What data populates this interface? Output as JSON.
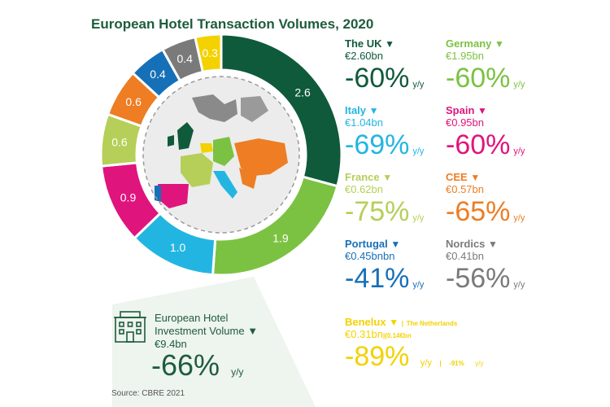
{
  "title": "European Hotel Transaction Volumes, 2020",
  "chart_data": {
    "type": "pie",
    "title": "European Hotel Transaction Volumes, 2020",
    "variant": "donut",
    "unit": "€bn",
    "slices": [
      {
        "label": "2.6",
        "value": 2.6,
        "color": "#0f5a3b",
        "country": "The UK"
      },
      {
        "label": "1.9",
        "value": 1.95,
        "color": "#7cc242",
        "country": "Germany"
      },
      {
        "label": "1.0",
        "value": 1.04,
        "color": "#23b5e2",
        "country": "Italy"
      },
      {
        "label": "0.9",
        "value": 0.95,
        "color": "#e0147d",
        "country": "Spain"
      },
      {
        "label": "0.6",
        "value": 0.62,
        "color": "#b5cf58",
        "country": "France"
      },
      {
        "label": "0.6",
        "value": 0.57,
        "color": "#ee7d23",
        "country": "CEE"
      },
      {
        "label": "0.4",
        "value": 0.45,
        "color": "#1670b8",
        "country": "Portugal"
      },
      {
        "label": "0.4",
        "value": 0.41,
        "color": "#7a7a7a",
        "country": "Nordics"
      },
      {
        "label": "0.3",
        "value": 0.31,
        "color": "#f3d200",
        "country": "Benelux"
      }
    ]
  },
  "countries": [
    {
      "name": "The UK",
      "value": "€2.60bn",
      "change": "-60%",
      "suffix": "y/y",
      "color": "#0f5a3b",
      "val_color": "#0f5a3b"
    },
    {
      "name": "Germany",
      "value": "€1.95bn",
      "change": "-60%",
      "suffix": "y/y",
      "color": "#7cc242",
      "val_color": "#7cc242"
    },
    {
      "name": "Italy",
      "value": "€1.04bn",
      "change": "-69%",
      "suffix": "y/y",
      "color": "#23b5e2",
      "val_color": "#23b5e2"
    },
    {
      "name": "Spain",
      "value": "€0.95bn",
      "change": "-60%",
      "suffix": "y/y",
      "color": "#e0147d",
      "val_color": "#e0147d"
    },
    {
      "name": "France",
      "value": "€0.62bn",
      "change": "-75%",
      "suffix": "y/y",
      "color": "#b5cf58",
      "val_color": "#b5cf58"
    },
    {
      "name": "CEE",
      "value": "€0.57bn",
      "change": "-65%",
      "suffix": "y/y",
      "color": "#ee7d23",
      "val_color": "#ee7d23"
    },
    {
      "name": "Portugal",
      "value": "€0.45bnbn",
      "change": "-41%",
      "suffix": "y/y",
      "color": "#1670b8",
      "val_color": "#1670b8"
    },
    {
      "name": "Nordics",
      "value": "€0.41bn",
      "change": "-56%",
      "suffix": "y/y",
      "color": "#7a7a7a",
      "val_color": "#7a7a7a"
    }
  ],
  "benelux": {
    "name": "Benelux",
    "extra_name": "The Netherlands",
    "value": "€0.31bn",
    "extra_value": "0.14€bn",
    "change": "-89%",
    "suffix": "y/y",
    "extra_change": "-91%",
    "extra_suffix": "y/y",
    "color": "#f3d200"
  },
  "total": {
    "label_line1": "European Hotel",
    "label_line2": "Investment Volume",
    "value": "€9.4bn",
    "change": "-66%",
    "suffix": "y/y",
    "icon": "hotel-building-icon"
  },
  "source": "Source: CBRE 2021"
}
